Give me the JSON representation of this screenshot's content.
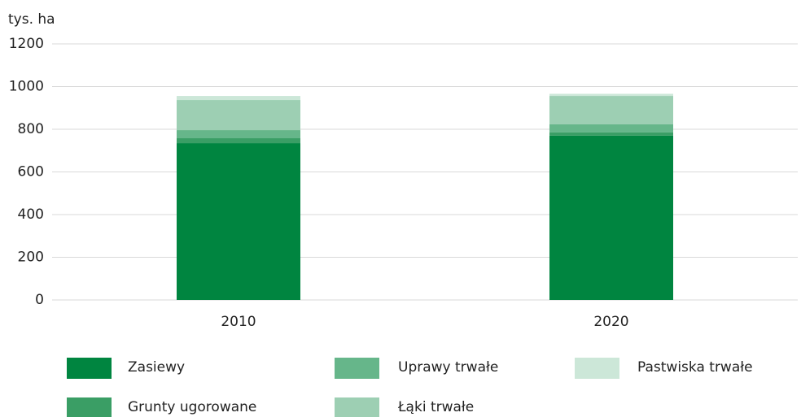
{
  "chart_data": {
    "type": "stacked_bar",
    "y_label": "tys. ha",
    "categories": [
      "2010",
      "2020"
    ],
    "series": [
      {
        "name": "Zasiewy",
        "color": "#008540",
        "values": [
          735,
          770
        ]
      },
      {
        "name": "Grunty ugorowane",
        "color": "#3a9e65",
        "values": [
          23,
          15
        ]
      },
      {
        "name": "Uprawy trwałe",
        "color": "#66b68a",
        "values": [
          38,
          38
        ]
      },
      {
        "name": "Łąki trwałe",
        "color": "#9dcfb3",
        "values": [
          141,
          133
        ]
      },
      {
        "name": "Pastwiska trwałe",
        "color": "#cce7d8",
        "values": [
          19,
          10
        ]
      }
    ],
    "ylim": [
      0,
      1200
    ],
    "yticks": [
      0,
      200,
      400,
      600,
      800,
      1000,
      1200
    ],
    "grid": true
  }
}
